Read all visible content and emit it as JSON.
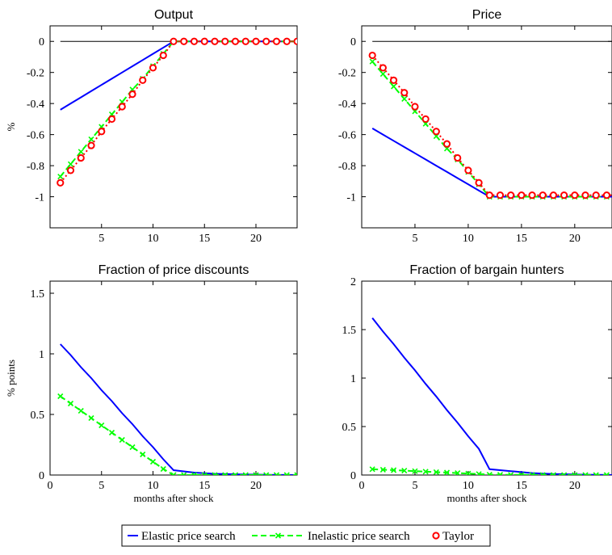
{
  "figure": {
    "legend": {
      "placement": "bottom-center",
      "entries": [
        {
          "label": "Elastic price search",
          "color": "#0000ff",
          "style": "solid",
          "marker": "none"
        },
        {
          "label": "Inelastic price search",
          "color": "#00ff00",
          "style": "dashed",
          "marker": "x"
        },
        {
          "label": "Taylor",
          "color": "#ff0000",
          "style": "dotted",
          "marker": "circle"
        }
      ]
    }
  },
  "chart_data": [
    {
      "type": "line",
      "title": "Output",
      "xlabel": "",
      "ylabel": "%",
      "xlim": [
        0,
        24
      ],
      "ylim": [
        -1.2,
        0.1
      ],
      "xticks": [
        5,
        10,
        15,
        20
      ],
      "yticks": [
        0,
        -0.2,
        -0.4,
        -0.6,
        -0.8,
        -1
      ],
      "ytick_labels": [
        "0",
        "-0.2",
        "-0.4",
        "-0.6",
        "-0.8",
        "-1"
      ],
      "zero_line": true,
      "grid": false,
      "x": [
        1,
        2,
        3,
        4,
        5,
        6,
        7,
        8,
        9,
        10,
        11,
        12,
        13,
        14,
        15,
        16,
        17,
        18,
        19,
        20,
        21,
        22,
        23,
        24
      ],
      "series": [
        {
          "name": "Elastic price search",
          "values": [
            -0.44,
            -0.4,
            -0.36,
            -0.32,
            -0.28,
            -0.24,
            -0.2,
            -0.16,
            -0.12,
            -0.08,
            -0.04,
            0,
            0,
            0,
            0,
            0,
            0,
            0,
            0,
            0,
            0,
            0,
            0,
            0
          ]
        },
        {
          "name": "Inelastic price search",
          "values": [
            -0.87,
            -0.79,
            -0.71,
            -0.63,
            -0.55,
            -0.47,
            -0.39,
            -0.31,
            -0.24,
            -0.16,
            -0.08,
            0,
            0,
            0,
            0,
            0,
            0,
            0,
            0,
            0,
            0,
            0,
            0,
            0
          ]
        },
        {
          "name": "Taylor",
          "values": [
            -0.91,
            -0.83,
            -0.75,
            -0.67,
            -0.58,
            -0.5,
            -0.42,
            -0.34,
            -0.25,
            -0.17,
            -0.09,
            0,
            0,
            0,
            0,
            0,
            0,
            0,
            0,
            0,
            0,
            0,
            0,
            0
          ]
        }
      ]
    },
    {
      "type": "line",
      "title": "Price",
      "xlabel": "",
      "ylabel": "",
      "xlim": [
        0,
        23.5
      ],
      "ylim": [
        -1.2,
        0.1
      ],
      "xticks": [
        5,
        10,
        15,
        20
      ],
      "yticks": [
        0,
        -0.2,
        -0.4,
        -0.6,
        -0.8,
        -1
      ],
      "ytick_labels": [
        "0",
        "-0.2",
        "-0.4",
        "-0.6",
        "-0.8",
        "-1"
      ],
      "zero_line": true,
      "grid": false,
      "x": [
        1,
        2,
        3,
        4,
        5,
        6,
        7,
        8,
        9,
        10,
        11,
        12,
        13,
        14,
        15,
        16,
        17,
        18,
        19,
        20,
        21,
        22,
        23,
        24
      ],
      "series": [
        {
          "name": "Elastic price search",
          "values": [
            -0.56,
            -0.6,
            -0.64,
            -0.68,
            -0.72,
            -0.76,
            -0.8,
            -0.84,
            -0.88,
            -0.92,
            -0.96,
            -1,
            -1,
            -1,
            -1,
            -1,
            -1,
            -1,
            -1,
            -1,
            -1,
            -1,
            -1,
            -1
          ]
        },
        {
          "name": "Inelastic price search",
          "values": [
            -0.13,
            -0.21,
            -0.29,
            -0.37,
            -0.45,
            -0.53,
            -0.61,
            -0.69,
            -0.76,
            -0.84,
            -0.92,
            -1,
            -1,
            -1,
            -1,
            -1,
            -1,
            -1,
            -1,
            -1,
            -1,
            -1,
            -1,
            -1
          ]
        },
        {
          "name": "Taylor",
          "values": [
            -0.09,
            -0.17,
            -0.25,
            -0.33,
            -0.42,
            -0.5,
            -0.58,
            -0.66,
            -0.75,
            -0.83,
            -0.91,
            -0.99,
            -0.99,
            -0.99,
            -0.99,
            -0.99,
            -0.99,
            -0.99,
            -0.99,
            -0.99,
            -0.99,
            -0.99,
            -0.99,
            -0.99
          ]
        }
      ]
    },
    {
      "type": "line",
      "title": "Fraction of price discounts",
      "xlabel": "months after shock",
      "ylabel": "% points",
      "xlim": [
        0,
        24
      ],
      "ylim": [
        0,
        1.6
      ],
      "xticks": [
        0,
        5,
        10,
        15,
        20
      ],
      "yticks": [
        0,
        0.5,
        1,
        1.5
      ],
      "ytick_labels": [
        "0",
        "0.5",
        "1",
        "1.5"
      ],
      "zero_line": false,
      "grid": false,
      "x": [
        1,
        2,
        3,
        4,
        5,
        6,
        7,
        8,
        9,
        10,
        11,
        12,
        13,
        14,
        15,
        16,
        17,
        18,
        19,
        20,
        21,
        22,
        23,
        24
      ],
      "series": [
        {
          "name": "Elastic price search",
          "values": [
            1.08,
            0.99,
            0.89,
            0.8,
            0.7,
            0.61,
            0.51,
            0.42,
            0.32,
            0.23,
            0.13,
            0.04,
            0.03,
            0.02,
            0.015,
            0.01,
            0.008,
            0.006,
            0.004,
            0.003,
            0.002,
            0.001,
            0.001,
            0
          ]
        },
        {
          "name": "Inelastic price search",
          "values": [
            0.65,
            0.59,
            0.53,
            0.47,
            0.41,
            0.35,
            0.29,
            0.23,
            0.17,
            0.11,
            0.05,
            0,
            0,
            0,
            0,
            0,
            0,
            0,
            0,
            0,
            0,
            0,
            0,
            0
          ]
        }
      ]
    },
    {
      "type": "line",
      "title": "Fraction of bargain hunters",
      "xlabel": "months after shock",
      "ylabel": "",
      "xlim": [
        0,
        23.5
      ],
      "ylim": [
        0,
        2
      ],
      "xticks": [
        0,
        5,
        10,
        15,
        20
      ],
      "yticks": [
        0,
        0.5,
        1,
        1.5,
        2
      ],
      "ytick_labels": [
        "0",
        "0.5",
        "1",
        "1.5",
        "2"
      ],
      "zero_line": false,
      "grid": false,
      "x": [
        1,
        2,
        3,
        4,
        5,
        6,
        7,
        8,
        9,
        10,
        11,
        12,
        13,
        14,
        15,
        16,
        17,
        18,
        19,
        20,
        21,
        22,
        23,
        24
      ],
      "series": [
        {
          "name": "Elastic price search",
          "values": [
            1.62,
            1.48,
            1.35,
            1.21,
            1.08,
            0.94,
            0.81,
            0.67,
            0.54,
            0.4,
            0.27,
            0.06,
            0.05,
            0.04,
            0.03,
            0.02,
            0.015,
            0.01,
            0.008,
            0.005,
            0.003,
            0.002,
            0.001,
            0
          ]
        },
        {
          "name": "Inelastic price search",
          "values": [
            0.06,
            0.055,
            0.05,
            0.045,
            0.04,
            0.035,
            0.03,
            0.025,
            0.02,
            0.015,
            0.01,
            0.004,
            0.003,
            0.002,
            0.002,
            0.001,
            0.001,
            0.001,
            0,
            0,
            0,
            0,
            0,
            0
          ]
        }
      ]
    }
  ]
}
